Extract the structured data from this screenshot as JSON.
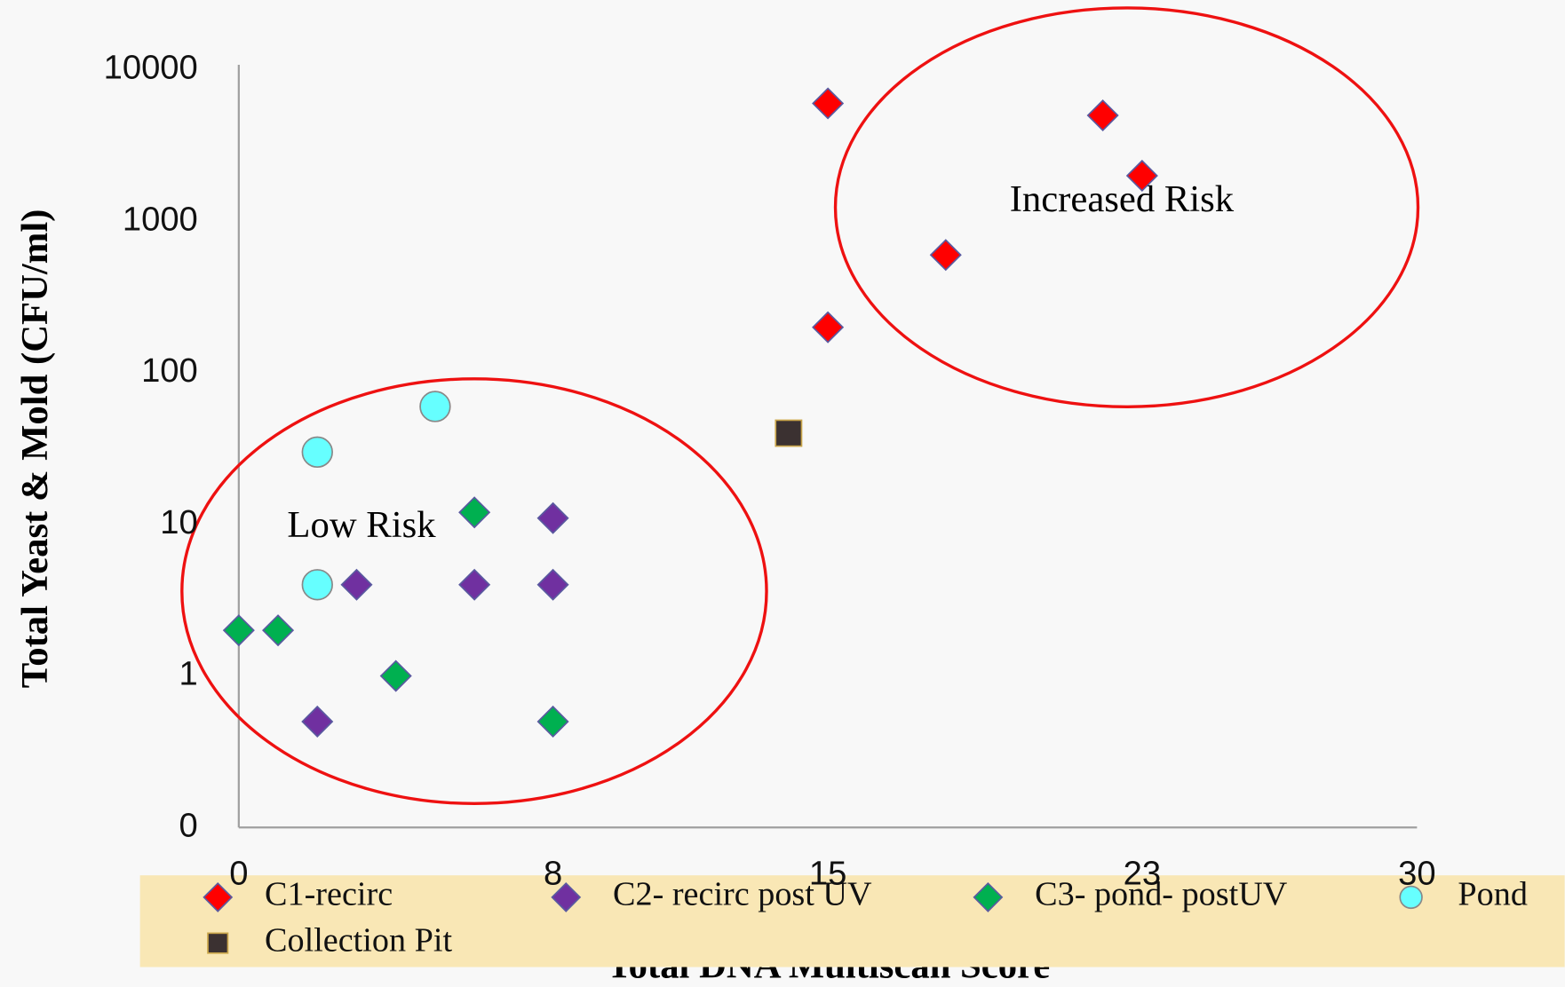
{
  "chart_data": {
    "type": "scatter",
    "x_label": "Total DNA Multiscan Score",
    "y_label": "Total Yeast & Mold (CFU/ml)",
    "xlim": [
      0,
      30
    ],
    "xticks": [
      0,
      8,
      15,
      23,
      30
    ],
    "ylim": [
      0.1,
      10000
    ],
    "yticks": [
      {
        "value": 0.1,
        "label": "0"
      },
      1,
      10,
      100,
      1000,
      10000
    ],
    "log_scale_y": true,
    "grid": false,
    "legend": "bottom",
    "annotations": [
      "Low Risk",
      "Increased Risk"
    ],
    "series": [
      {
        "name": "C1-recirc",
        "color": "#ff0000",
        "marker": "diamond",
        "x": [
          15,
          22,
          23,
          18,
          15
        ],
        "values": [
          6000,
          5000,
          2000,
          600,
          200
        ]
      },
      {
        "name": "C2- recirc post UV",
        "color": "#7030a0",
        "marker": "diamond",
        "x": [
          3,
          6,
          8,
          8,
          2
        ],
        "values": [
          4,
          4,
          4,
          11,
          0.5
        ]
      },
      {
        "name": "C3- pond- postUV",
        "color": "#00b050",
        "marker": "diamond",
        "x": [
          0,
          1,
          4,
          6,
          8
        ],
        "values": [
          2,
          2,
          1,
          12,
          0.5
        ]
      },
      {
        "name": "Pond",
        "color": "#66ffff",
        "marker": "circle",
        "x": [
          2,
          5,
          2
        ],
        "values": [
          30,
          60,
          4
        ]
      },
      {
        "name": "Collection Pit",
        "color": "#3b3131",
        "marker": "square",
        "x": [
          14
        ],
        "values": [
          40
        ]
      }
    ]
  }
}
